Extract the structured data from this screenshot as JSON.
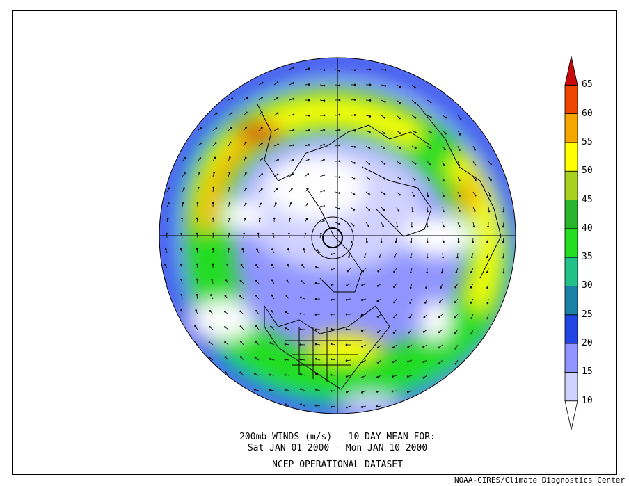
{
  "title": {
    "line1": "200mb WINDS (m/s)   10-DAY MEAN FOR:",
    "line2": "Sat JAN 01 2000 - Mon JAN 10 2000",
    "line3": "NCEP OPERATIONAL DATASET"
  },
  "credit": "NOAA-CIRES/Climate Diagnostics Center",
  "projection": "north polar stereographic",
  "colorbar": {
    "levels": [
      "10",
      "15",
      "20",
      "25",
      "30",
      "35",
      "40",
      "45",
      "50",
      "55",
      "60",
      "65"
    ],
    "colors": [
      "#ffffff",
      "#cfd2ff",
      "#8f94ff",
      "#2246e6",
      "#1a80a6",
      "#21c28a",
      "#22dd22",
      "#27b52b",
      "#a6d11f",
      "#ffff00",
      "#f5a700",
      "#f04700",
      "#c80a0a"
    ]
  },
  "colors": {
    "ocean_background": "#2a50e0",
    "coastline": "#000000",
    "axes": "#000000"
  }
}
